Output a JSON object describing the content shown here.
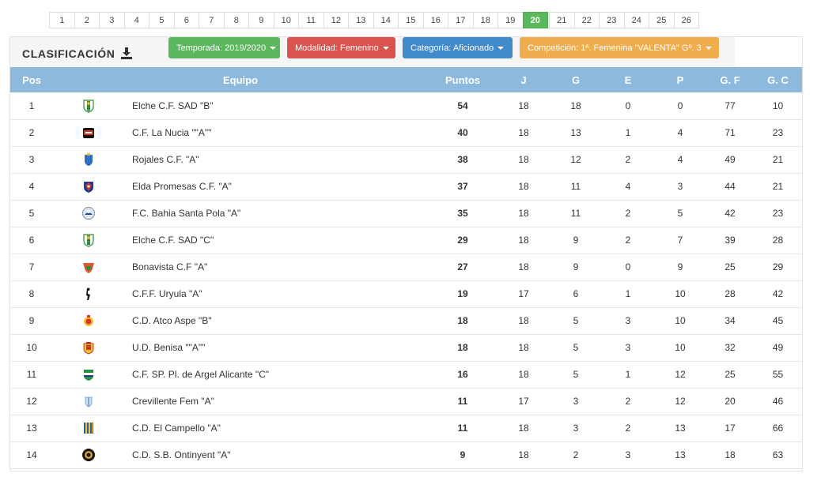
{
  "pager": {
    "rounds": [
      "1",
      "2",
      "3",
      "4",
      "5",
      "6",
      "7",
      "8",
      "9",
      "10",
      "11",
      "12",
      "13",
      "14",
      "15",
      "16",
      "17",
      "18",
      "19",
      "20",
      "21",
      "22",
      "23",
      "24",
      "25",
      "26"
    ],
    "active": "20"
  },
  "panel": {
    "title": "CLASIFICACIÓN",
    "download_icon": "download-icon"
  },
  "filters": {
    "temporada": "Temporada: 2019/2020",
    "modalidad": "Modalidad: Femenino",
    "categoria": "Categoría: Aficionado",
    "competicion": "Competición: 1ª. Femenina \"VALENTA\" Gº. 3"
  },
  "table": {
    "headers": {
      "pos": "Pos",
      "equipo": "Equipo",
      "puntos": "Puntos",
      "j": "J",
      "g": "G",
      "e": "E",
      "p": "P",
      "gf": "G. F",
      "gc": "G. C"
    },
    "rows": [
      {
        "pos": "1",
        "team": "Elche C.F. SAD \"B\"",
        "pts": "54",
        "j": "18",
        "g": "18",
        "e": "0",
        "p": "0",
        "gf": "77",
        "gc": "10",
        "crest": "shield-green-white"
      },
      {
        "pos": "2",
        "team": "C.F. La Nucia \"\"A\"\"",
        "pts": "40",
        "j": "18",
        "g": "13",
        "e": "1",
        "p": "4",
        "gf": "71",
        "gc": "23",
        "crest": "badge-red-black"
      },
      {
        "pos": "3",
        "team": "Rojales C.F. \"A\"",
        "pts": "38",
        "j": "18",
        "g": "12",
        "e": "2",
        "p": "4",
        "gf": "49",
        "gc": "21",
        "crest": "shield-blue"
      },
      {
        "pos": "4",
        "team": "Elda Promesas C.F. \"A\"",
        "pts": "37",
        "j": "18",
        "g": "11",
        "e": "4",
        "p": "3",
        "gf": "44",
        "gc": "21",
        "crest": "shield-red-blue"
      },
      {
        "pos": "5",
        "team": "F.C. Bahia Santa Pola \"A\"",
        "pts": "35",
        "j": "18",
        "g": "11",
        "e": "2",
        "p": "5",
        "gf": "42",
        "gc": "23",
        "crest": "round-blue"
      },
      {
        "pos": "6",
        "team": "Elche C.F. SAD \"C\"",
        "pts": "29",
        "j": "18",
        "g": "9",
        "e": "2",
        "p": "7",
        "gf": "39",
        "gc": "28",
        "crest": "shield-green-white"
      },
      {
        "pos": "7",
        "team": "Bonavista C.F \"A\"",
        "pts": "27",
        "j": "18",
        "g": "9",
        "e": "0",
        "p": "9",
        "gf": "25",
        "gc": "29",
        "crest": "shield-orange-green"
      },
      {
        "pos": "8",
        "team": "C.F.F. Uryula \"A\"",
        "pts": "19",
        "j": "17",
        "g": "6",
        "e": "1",
        "p": "10",
        "gf": "28",
        "gc": "42",
        "crest": "figure-black"
      },
      {
        "pos": "9",
        "team": "C.D. Atco Aspe \"B\"",
        "pts": "18",
        "j": "18",
        "g": "5",
        "e": "3",
        "p": "10",
        "gf": "34",
        "gc": "45",
        "crest": "round-red-yellow"
      },
      {
        "pos": "10",
        "team": "U.D. Benisa \"\"A\"\"",
        "pts": "18",
        "j": "18",
        "g": "5",
        "e": "3",
        "p": "10",
        "gf": "32",
        "gc": "49",
        "crest": "shield-yellow-red"
      },
      {
        "pos": "11",
        "team": "C.F. SP. Pl. de Argel Alicante \"C\"",
        "pts": "16",
        "j": "18",
        "g": "5",
        "e": "1",
        "p": "12",
        "gf": "25",
        "gc": "55",
        "crest": "shield-green-navy"
      },
      {
        "pos": "12",
        "team": "Crevillente Fem \"A\"",
        "pts": "11",
        "j": "17",
        "g": "3",
        "e": "2",
        "p": "12",
        "gf": "20",
        "gc": "46",
        "crest": "shield-lightblue"
      },
      {
        "pos": "13",
        "team": "C.D. El Campello \"A\"",
        "pts": "11",
        "j": "18",
        "g": "3",
        "e": "2",
        "p": "13",
        "gf": "17",
        "gc": "66",
        "crest": "shield-stripes-blue"
      },
      {
        "pos": "14",
        "team": "C.D. S.B. Ontinyent \"A\"",
        "pts": "9",
        "j": "18",
        "g": "2",
        "e": "3",
        "p": "13",
        "gf": "18",
        "gc": "63",
        "crest": "round-black-gold"
      }
    ]
  }
}
